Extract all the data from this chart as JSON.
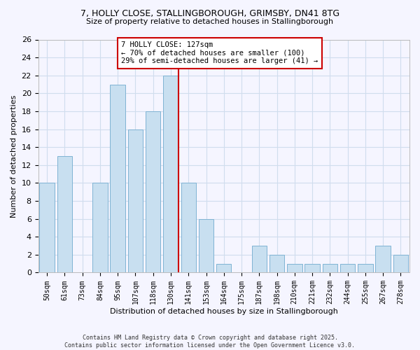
{
  "title1": "7, HOLLY CLOSE, STALLINGBOROUGH, GRIMSBY, DN41 8TG",
  "title2": "Size of property relative to detached houses in Stallingborough",
  "xlabel": "Distribution of detached houses by size in Stallingborough",
  "ylabel": "Number of detached properties",
  "bar_labels": [
    "50sqm",
    "61sqm",
    "73sqm",
    "84sqm",
    "95sqm",
    "107sqm",
    "118sqm",
    "130sqm",
    "141sqm",
    "153sqm",
    "164sqm",
    "175sqm",
    "187sqm",
    "198sqm",
    "210sqm",
    "221sqm",
    "232sqm",
    "244sqm",
    "255sqm",
    "267sqm",
    "278sqm"
  ],
  "bar_values": [
    10,
    13,
    0,
    10,
    21,
    16,
    18,
    22,
    10,
    6,
    1,
    0,
    3,
    2,
    1,
    1,
    1,
    1,
    1,
    3,
    2
  ],
  "bar_color": "#c8dff0",
  "bar_edge_color": "#7fb3d3",
  "vline_index": 7,
  "vline_color": "#cc0000",
  "annotation_title": "7 HOLLY CLOSE: 127sqm",
  "annotation_line1": "← 70% of detached houses are smaller (100)",
  "annotation_line2": "29% of semi-detached houses are larger (41) →",
  "annotation_box_facecolor": "#ffffff",
  "annotation_box_edgecolor": "#cc0000",
  "ylim": [
    0,
    26
  ],
  "yticks": [
    0,
    2,
    4,
    6,
    8,
    10,
    12,
    14,
    16,
    18,
    20,
    22,
    24,
    26
  ],
  "footnote1": "Contains HM Land Registry data © Crown copyright and database right 2025.",
  "footnote2": "Contains public sector information licensed under the Open Government Licence v3.0.",
  "bg_color": "#f5f5ff",
  "grid_color": "#d0dded"
}
